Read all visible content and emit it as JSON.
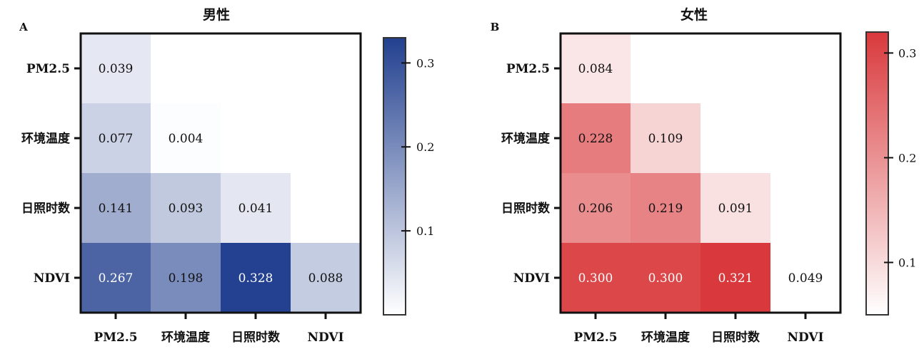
{
  "chart_data": [
    {
      "type": "heatmap",
      "panel": "A",
      "title": "男性",
      "rows": [
        "PM2.5",
        "环境温度",
        "日照时数",
        "NDVI"
      ],
      "cols": [
        "PM2.5",
        "环境温度",
        "日照时数",
        "NDVI"
      ],
      "cells": [
        {
          "row": 0,
          "col": 0,
          "value": 0.039,
          "label": "0.039"
        },
        {
          "row": 1,
          "col": 0,
          "value": 0.077,
          "label": "0.077"
        },
        {
          "row": 1,
          "col": 1,
          "value": 0.004,
          "label": "0.004"
        },
        {
          "row": 2,
          "col": 0,
          "value": 0.141,
          "label": "0.141"
        },
        {
          "row": 2,
          "col": 1,
          "value": 0.093,
          "label": "0.093"
        },
        {
          "row": 2,
          "col": 2,
          "value": 0.041,
          "label": "0.041"
        },
        {
          "row": 3,
          "col": 0,
          "value": 0.267,
          "label": "0.267"
        },
        {
          "row": 3,
          "col": 1,
          "value": 0.198,
          "label": "0.198"
        },
        {
          "row": 3,
          "col": 2,
          "value": 0.328,
          "label": "0.328"
        },
        {
          "row": 3,
          "col": 3,
          "value": 0.088,
          "label": "0.088"
        }
      ],
      "colorbar": {
        "min": 0.0,
        "max": 0.33,
        "ticks": [
          0.1,
          0.2,
          0.3
        ],
        "tick_labels": [
          "0.1",
          "0.2",
          "0.3"
        ],
        "color_low": "#ffffff",
        "color_high": "#22408f"
      }
    },
    {
      "type": "heatmap",
      "panel": "B",
      "title": "女性",
      "rows": [
        "PM2.5",
        "环境温度",
        "日照时数",
        "NDVI"
      ],
      "cols": [
        "PM2.5",
        "环境温度",
        "日照时数",
        "NDVI"
      ],
      "cells": [
        {
          "row": 0,
          "col": 0,
          "value": 0.084,
          "label": "0.084"
        },
        {
          "row": 1,
          "col": 0,
          "value": 0.228,
          "label": "0.228"
        },
        {
          "row": 1,
          "col": 1,
          "value": 0.109,
          "label": "0.109"
        },
        {
          "row": 2,
          "col": 0,
          "value": 0.206,
          "label": "0.206"
        },
        {
          "row": 2,
          "col": 1,
          "value": 0.219,
          "label": "0.219"
        },
        {
          "row": 2,
          "col": 2,
          "value": 0.091,
          "label": "0.091"
        },
        {
          "row": 3,
          "col": 0,
          "value": 0.3,
          "label": "0.300"
        },
        {
          "row": 3,
          "col": 1,
          "value": 0.3,
          "label": "0.300"
        },
        {
          "row": 3,
          "col": 2,
          "value": 0.321,
          "label": "0.321"
        },
        {
          "row": 3,
          "col": 3,
          "value": 0.049,
          "label": "0.049"
        }
      ],
      "colorbar": {
        "min": 0.05,
        "max": 0.32,
        "ticks": [
          0.1,
          0.2,
          0.3
        ],
        "tick_labels": [
          "0.1",
          "0.2",
          "0.3"
        ],
        "color_low": "#ffffff",
        "color_high": "#d9393c"
      }
    }
  ]
}
